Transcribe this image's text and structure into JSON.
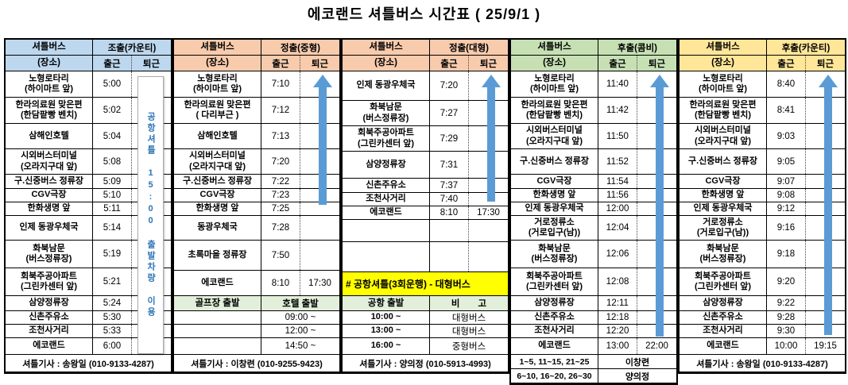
{
  "title": "에코랜드 셔틀버스 시간표 ( 25/9/1 )",
  "colors": {
    "group_early": "#BDD7EE",
    "group_regular": "#F8CBAD",
    "group_late_combi": "#C6E0B4",
    "group_late_county": "#FFE699",
    "section_header": "#E2EFDA",
    "highlight": "#FFFF00",
    "arrow": "#5B9BD5",
    "note_text": "#2E75B6"
  },
  "header_labels": {
    "bus": "셔틀버스",
    "place": "(장소)",
    "depart": "출근",
    "return": "퇴근"
  },
  "groups": [
    {
      "id": "early-county",
      "shift": "조출(카운티)",
      "color": "#BDD7EE",
      "note": "공항셔틀 15:00 출발차량 이용",
      "rows": [
        {
          "place": "노형로타리\n(하이마트 앞)",
          "t1": "5:00",
          "t2": ""
        },
        {
          "place": "한라의료원 맞은편\n(한담팥빵 벤치)",
          "t1": "5:02",
          "t2": ""
        },
        {
          "place": "삼해인호텔",
          "t1": "5:04",
          "t2": ""
        },
        {
          "place": "시외버스터미널\n(오라지구대 앞)",
          "t1": "5:08",
          "t2": ""
        },
        {
          "place": "구.신중버스 정류장",
          "t1": "5:09",
          "t2": ""
        },
        {
          "place": "CGV극장",
          "t1": "5:10",
          "t2": ""
        },
        {
          "place": "한화생명 앞",
          "t1": "5:11",
          "t2": ""
        },
        {
          "place": "인제 동광우체국",
          "t1": "5:14",
          "t2": ""
        },
        {
          "place": "화북남문\n(버스정류장)",
          "t1": "5:19",
          "t2": ""
        },
        {
          "place": "회북주공아파트\n(그린카센터 앞)",
          "t1": "5:21",
          "t2": ""
        },
        {
          "place": "삼양정류장",
          "t1": "5:24",
          "t2": ""
        },
        {
          "place": "신촌주유소",
          "t1": "5:30",
          "t2": ""
        },
        {
          "place": "조천사거리",
          "t1": "5:33",
          "t2": ""
        },
        {
          "place": "에코랜드",
          "t1": "6:00",
          "t2": ""
        }
      ],
      "footer": "셔틀기사 : 송왕일 (010-9133-4287)"
    },
    {
      "id": "regular-medium",
      "shift": "정출(중형)",
      "color": "#F8CBAD",
      "rows": [
        {
          "place": "노형로타리\n(하이마트 앞)",
          "t1": "7:10",
          "t2": ""
        },
        {
          "place": "한라의료원 맞은편\n( 다리부근 )",
          "t1": "7:12",
          "t2": ""
        },
        {
          "place": "삼해인호텔",
          "t1": "7:13",
          "t2": ""
        },
        {
          "place": "시외버스터미널\n(오라지구대 앞)",
          "t1": "7:20",
          "t2": ""
        },
        {
          "place": "구.신중버스 정류장",
          "t1": "7:22",
          "t2": ""
        },
        {
          "place": "CGV극장",
          "t1": "7:23",
          "t2": ""
        },
        {
          "place": "한화생명 앞",
          "t1": "7:25",
          "t2": ""
        },
        {
          "place": "동광우체국",
          "t1": "7:28",
          "t2": ""
        },
        {
          "place": "초록마을 정류장",
          "t1": "7:50",
          "t2": ""
        },
        {
          "place": "에코랜드",
          "t1": "8:10",
          "t2": "17:30"
        }
      ],
      "special": {
        "left_header": "골프장 출발",
        "right_header": "호텔 출발",
        "rows": [
          [
            "",
            "09:00 ~"
          ],
          [
            "",
            "12:00 ~"
          ],
          [
            "",
            "14:50 ~"
          ]
        ]
      },
      "footer": "셔틀기사 : 이창련 (010-9255-9423)"
    },
    {
      "id": "regular-large",
      "shift": "정출(대형)",
      "color": "#F8CBAD",
      "banner": "# 공항셔틀(3회운행) - 대형버스",
      "rows": [
        {
          "place": "인제 동광우체국",
          "t1": "7:20",
          "t2": ""
        },
        {
          "place": "화북남문\n(버스정류장)",
          "t1": "7:27",
          "t2": ""
        },
        {
          "place": "회북주공아파트\n(그린카센터 앞)",
          "t1": "7:29",
          "t2": ""
        },
        {
          "place": "삼양정류장",
          "t1": "7:31",
          "t2": ""
        },
        {
          "place": "신촌주유소",
          "t1": "7:37",
          "t2": ""
        },
        {
          "place": "조천사거리",
          "t1": "7:40",
          "t2": ""
        },
        {
          "place": "에코랜드",
          "t1": "8:10",
          "t2": "17:30"
        },
        {
          "place": "",
          "t1": "",
          "t2": ""
        },
        {
          "place": "",
          "t1": "",
          "t2": ""
        }
      ],
      "special": {
        "left_header": "공항 출발",
        "right_header": "비　　고",
        "rows": [
          [
            "10:00 ~",
            "대형버스"
          ],
          [
            "13:00 ~",
            "대형버스"
          ],
          [
            "16:00 ~",
            "중형버스"
          ]
        ]
      },
      "footer": "셔틀기사 : 양의정 (010-5913-4993)"
    },
    {
      "id": "late-combi",
      "shift": "후출(콤비)",
      "color": "#C6E0B4",
      "rows": [
        {
          "place": "노형로타리\n(하이마트 앞)",
          "t1": "11:40",
          "t2": ""
        },
        {
          "place": "한라의료원 맞은편\n(한담팥빵 벤치)",
          "t1": "11:42",
          "t2": ""
        },
        {
          "place": "시외버스터미널\n(오라지구대 앞)",
          "t1": "11:50",
          "t2": ""
        },
        {
          "place": "구.신중버스 정류장",
          "t1": "11:52",
          "t2": ""
        },
        {
          "place": "CGV극장",
          "t1": "11:54",
          "t2": ""
        },
        {
          "place": "한화생명 앞",
          "t1": "11:56",
          "t2": ""
        },
        {
          "place": "인제 동광우체국",
          "t1": "12:00",
          "t2": ""
        },
        {
          "place": "거로정류소\n(거로입구(남))",
          "t1": "12:04",
          "t2": ""
        },
        {
          "place": "화북남문\n(버스정류장)",
          "t1": "12:06",
          "t2": ""
        },
        {
          "place": "회북주공아파트\n(그린카센터 앞)",
          "t1": "12:08",
          "t2": ""
        },
        {
          "place": "삼양정류장",
          "t1": "12:11",
          "t2": ""
        },
        {
          "place": "신촌주유소",
          "t1": "12:18",
          "t2": ""
        },
        {
          "place": "조천사거리",
          "t1": "12:20",
          "t2": ""
        },
        {
          "place": "에코랜드",
          "t1": "13:00",
          "t2": "22:00"
        }
      ],
      "footer_rows": [
        [
          "1~5, 11~15, 21~25",
          "이창련"
        ],
        [
          "6~10, 16~20, 26~30",
          "양의정"
        ]
      ]
    },
    {
      "id": "late-county",
      "shift": "후출(카운티)",
      "color": "#FFE699",
      "rows": [
        {
          "place": "노형로타리\n(하이마트 앞)",
          "t1": "8:40",
          "t2": ""
        },
        {
          "place": "한라의료원 맞은편\n(한담팥빵 벤치)",
          "t1": "8:41",
          "t2": ""
        },
        {
          "place": "시외버스터미널\n(오라지구대 앞)",
          "t1": "9:03",
          "t2": ""
        },
        {
          "place": "구.신중버스 정류장",
          "t1": "9:05",
          "t2": ""
        },
        {
          "place": "CGV극장",
          "t1": "9:07",
          "t2": ""
        },
        {
          "place": "한화생명 앞",
          "t1": "9:08",
          "t2": ""
        },
        {
          "place": "인제 동광우체국",
          "t1": "9:12",
          "t2": ""
        },
        {
          "place": "거로정류소\n(거로입구(남))",
          "t1": "9:16",
          "t2": ""
        },
        {
          "place": "화북남문\n(버스정류장)",
          "t1": "9:18",
          "t2": ""
        },
        {
          "place": "회북주공아파트\n(그린카센터 앞)",
          "t1": "9:20",
          "t2": ""
        },
        {
          "place": "삼양정류장",
          "t1": "9:22",
          "t2": ""
        },
        {
          "place": "신촌주유소",
          "t1": "9:28",
          "t2": ""
        },
        {
          "place": "조천사거리",
          "t1": "9:30",
          "t2": ""
        },
        {
          "place": "에코랜드",
          "t1": "10:00",
          "t2": "19:15"
        }
      ],
      "footer": "셔틀기사 : 송왕일 (010-9133-4287)"
    }
  ]
}
